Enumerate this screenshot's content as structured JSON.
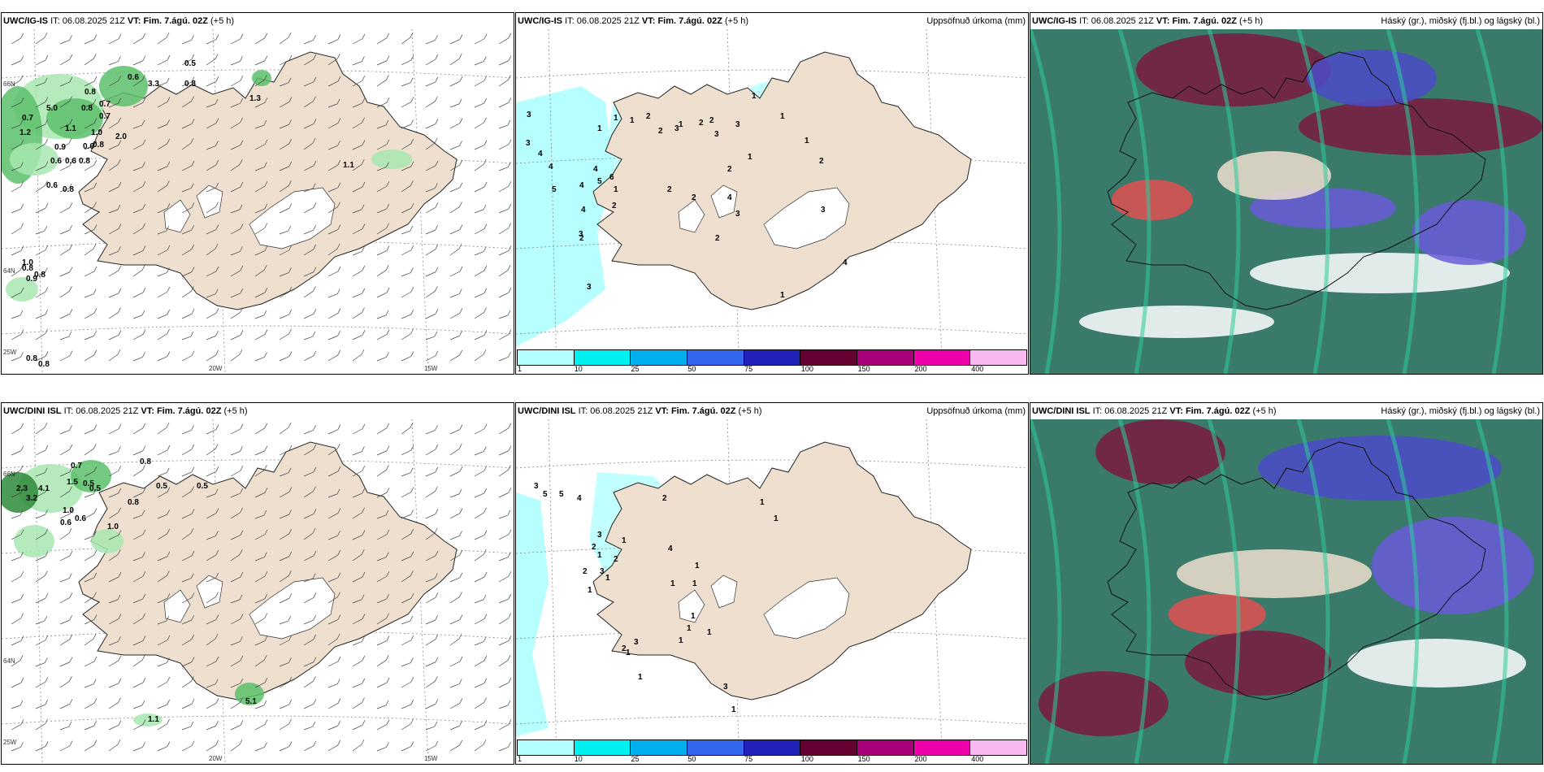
{
  "rows": [
    {
      "model": "UWC/IG-IS",
      "panels": [
        {
          "id": "wind",
          "model": "UWC/IG-IS",
          "right_title": ""
        },
        {
          "id": "precip",
          "model": "UWC/IG-IS",
          "right_title": "Uppsöfnuð úrkoma (mm)"
        },
        {
          "id": "cloud",
          "model": "UWC/IG-IS",
          "right_title": "Háský (gr.), miðský (fj.bl.) og lágský (bl.)"
        }
      ],
      "wind_labels": [
        "0.5",
        "0.8",
        "0.6",
        "3.3",
        "5.0",
        "0.8",
        "0.7",
        "1.1",
        "0.7",
        "1.3",
        "0.8",
        "2.0",
        "1.2",
        "0.7",
        "0.8",
        "0.9",
        "0.6",
        "0.6",
        "0.6",
        "0.8",
        "1.0",
        "1.1",
        "0.6",
        "0.8",
        "0.8",
        "0.9",
        "0.8",
        "1.0",
        "0.8",
        "0.8"
      ],
      "precip_labels": [
        "3",
        "3",
        "4",
        "4",
        "5",
        "1",
        "1",
        "1",
        "2",
        "2",
        "3",
        "2",
        "1",
        "2",
        "4",
        "4",
        "3",
        "2",
        "3",
        "1",
        "2",
        "3",
        "2",
        "4",
        "3",
        "1",
        "4",
        "5",
        "6",
        "2",
        "2",
        "2",
        "3",
        "1",
        "1",
        "1",
        "1",
        "2",
        "3",
        "4"
      ]
    },
    {
      "model": "UWC/DINI ISL",
      "panels": [
        {
          "id": "wind",
          "model": "UWC/DINI ISL",
          "right_title": ""
        },
        {
          "id": "precip",
          "model": "UWC/DINI ISL",
          "right_title": "Uppsöfnuð úrkoma (mm)"
        },
        {
          "id": "cloud",
          "model": "UWC/DINI ISL",
          "right_title": "Háský (gr.), miðský (fj.bl.) og lágský (bl.)"
        }
      ],
      "wind_labels": [
        "0.7",
        "0.8",
        "0.5",
        "2.3",
        "4.1",
        "3.2",
        "1.5",
        "0.5",
        "0.5",
        "1.0",
        "0.6",
        "0.6",
        "0.5",
        "0.8",
        "1.0",
        "5.1",
        "1.1"
      ],
      "precip_labels": [
        "3",
        "5",
        "5",
        "4",
        "2",
        "3",
        "2",
        "1",
        "2",
        "3",
        "1",
        "1",
        "1",
        "2",
        "1",
        "4",
        "1",
        "1",
        "1",
        "1",
        "2",
        "3",
        "1",
        "1",
        "1",
        "1",
        "1",
        "1",
        "1",
        "3"
      ]
    }
  ],
  "header_common": {
    "it_label": "IT:",
    "it_value": "06.08.2025 21Z",
    "vt_label": "VT:",
    "vt_value": "Fim. 7.ágú. 02Z",
    "lead": "(+5 h)"
  },
  "legend": {
    "colors": [
      "#b3ffff",
      "#00f0f0",
      "#00b0ee",
      "#3366ee",
      "#2222bb",
      "#660033",
      "#aa0077",
      "#ee00aa",
      "#f8b8f0"
    ],
    "ticks": [
      "1",
      "10",
      "25",
      "50",
      "75",
      "100",
      "150",
      "200",
      "400"
    ]
  },
  "axes": {
    "lon_labels": [
      "20W",
      "15W",
      "25W"
    ],
    "lat_labels": [
      "66N",
      "64N",
      "66N",
      "64N"
    ]
  },
  "colors": {
    "land": "#efdfcf",
    "ice": "#ffffff",
    "precip_light": "#b3ffff",
    "cloud_high": "#7a1a40",
    "cloud_mid": "#6a5ad8",
    "cloud_low": "#2ecc9a"
  }
}
